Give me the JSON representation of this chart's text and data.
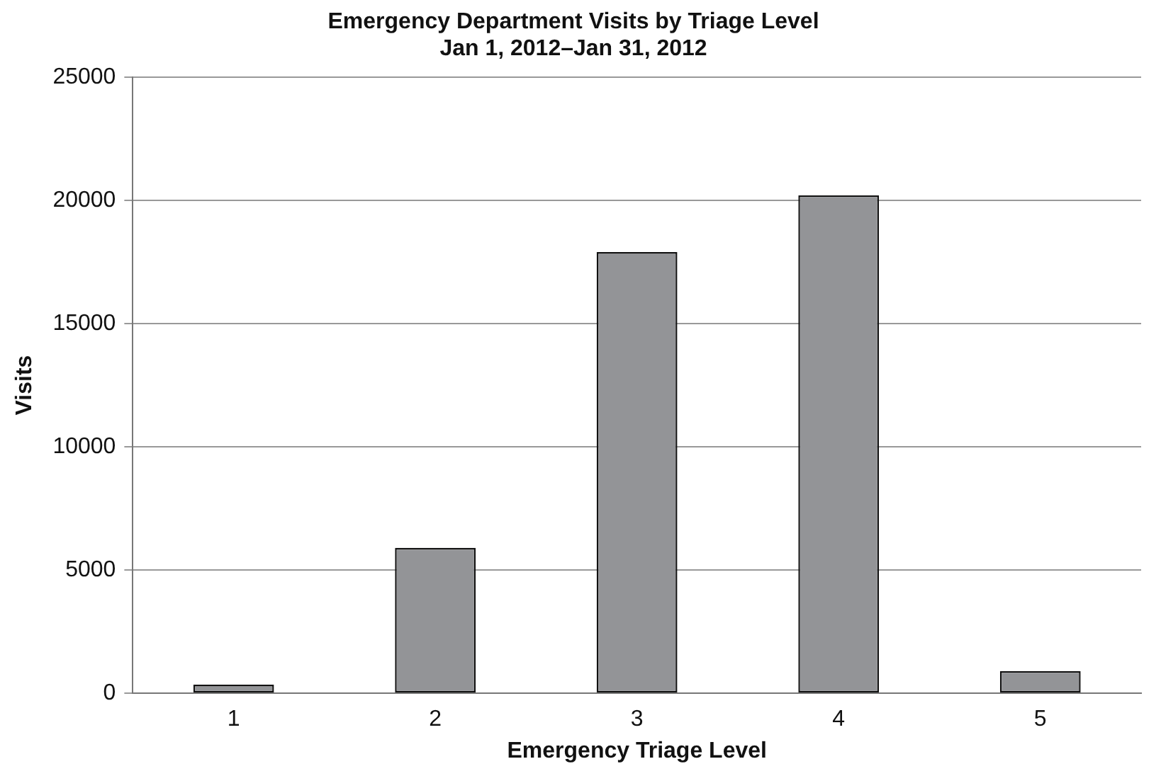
{
  "chart_data": {
    "type": "bar",
    "title": "Emergency Department Visits by Triage Level",
    "subtitle": "Jan 1, 2012–Jan 31, 2012",
    "xlabel": "Emergency Triage Level",
    "ylabel": "Visits",
    "categories": [
      "1",
      "2",
      "3",
      "4",
      "5"
    ],
    "values": [
      350,
      5900,
      17900,
      20200,
      900
    ],
    "color": "#939497",
    "ylim": [
      0,
      25000
    ],
    "yticks": [
      0,
      5000,
      10000,
      15000,
      20000,
      25000
    ],
    "grid": "y"
  }
}
